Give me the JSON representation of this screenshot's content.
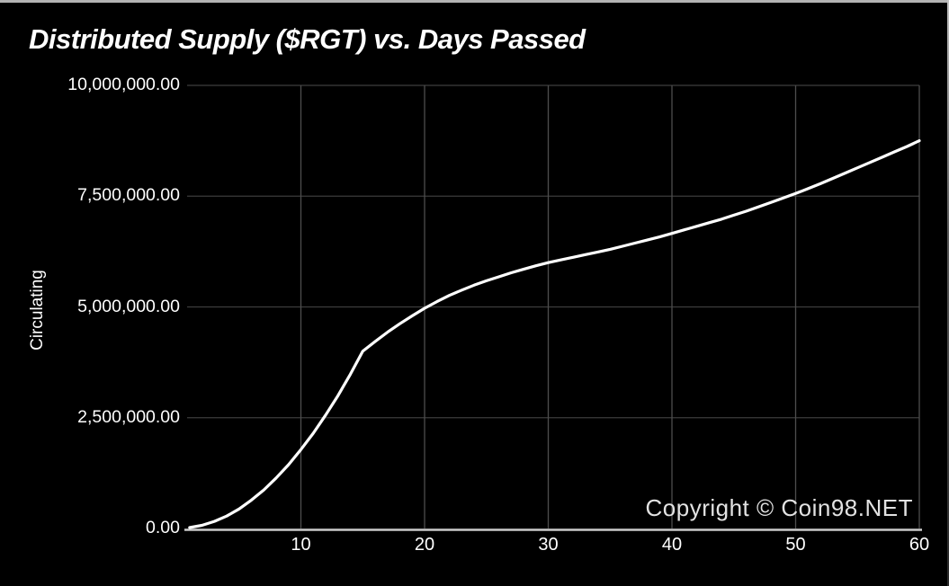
{
  "chart_data": {
    "type": "line",
    "title": "Distributed Supply ($RGT) vs. Days Passed",
    "xlabel": "",
    "ylabel": "Circulating",
    "watermark": "Copyright © Coin98.NET",
    "grid": true,
    "legend": "none",
    "xlim": [
      0.8,
      60
    ],
    "ylim": [
      0,
      10000000
    ],
    "x_ticks": [
      10,
      20,
      30,
      40,
      50,
      60
    ],
    "y_ticks": [
      {
        "label": "0.00",
        "value": 0
      },
      {
        "label": "2,500,000.00",
        "value": 2500000
      },
      {
        "label": "5,000,000.00",
        "value": 5000000
      },
      {
        "label": "7,500,000.00",
        "value": 7500000
      },
      {
        "label": "10,000,000.00",
        "value": 10000000
      }
    ],
    "colors": {
      "background": "#000000",
      "line": "#ffffff",
      "grid_horizontal": "#3c3c3c",
      "grid_vertical": "#4d4d4d",
      "axis_line": "#cccccc",
      "text": "#ffffff",
      "watermark": "#e2e2e2"
    },
    "series": [
      {
        "name": "Distributed Supply ($RGT)",
        "points": [
          [
            1,
            20000
          ],
          [
            2,
            70000
          ],
          [
            3,
            160000
          ],
          [
            4,
            280000
          ],
          [
            5,
            440000
          ],
          [
            6,
            640000
          ],
          [
            7,
            870000
          ],
          [
            8,
            1140000
          ],
          [
            9,
            1440000
          ],
          [
            10,
            1780000
          ],
          [
            11,
            2150000
          ],
          [
            12,
            2560000
          ],
          [
            13,
            3000000
          ],
          [
            14,
            3480000
          ],
          [
            15,
            4000000
          ],
          [
            16,
            4220000
          ],
          [
            17,
            4430000
          ],
          [
            18,
            4620000
          ],
          [
            19,
            4800000
          ],
          [
            20,
            4970000
          ],
          [
            21,
            5120000
          ],
          [
            22,
            5260000
          ],
          [
            23,
            5380000
          ],
          [
            24,
            5490000
          ],
          [
            25,
            5590000
          ],
          [
            26,
            5680000
          ],
          [
            27,
            5770000
          ],
          [
            28,
            5850000
          ],
          [
            29,
            5930000
          ],
          [
            30,
            6000000
          ],
          [
            31,
            6060000
          ],
          [
            32,
            6120000
          ],
          [
            33,
            6180000
          ],
          [
            34,
            6240000
          ],
          [
            35,
            6300000
          ],
          [
            36,
            6370000
          ],
          [
            37,
            6440000
          ],
          [
            38,
            6510000
          ],
          [
            39,
            6580000
          ],
          [
            40,
            6660000
          ],
          [
            41,
            6740000
          ],
          [
            42,
            6820000
          ],
          [
            43,
            6900000
          ],
          [
            44,
            6980000
          ],
          [
            45,
            7070000
          ],
          [
            46,
            7160000
          ],
          [
            47,
            7260000
          ],
          [
            48,
            7360000
          ],
          [
            49,
            7460000
          ],
          [
            50,
            7560000
          ],
          [
            51,
            7670000
          ],
          [
            52,
            7780000
          ],
          [
            53,
            7900000
          ],
          [
            54,
            8020000
          ],
          [
            55,
            8140000
          ],
          [
            56,
            8260000
          ],
          [
            57,
            8380000
          ],
          [
            58,
            8500000
          ],
          [
            59,
            8620000
          ],
          [
            60,
            8750000
          ]
        ]
      }
    ]
  }
}
